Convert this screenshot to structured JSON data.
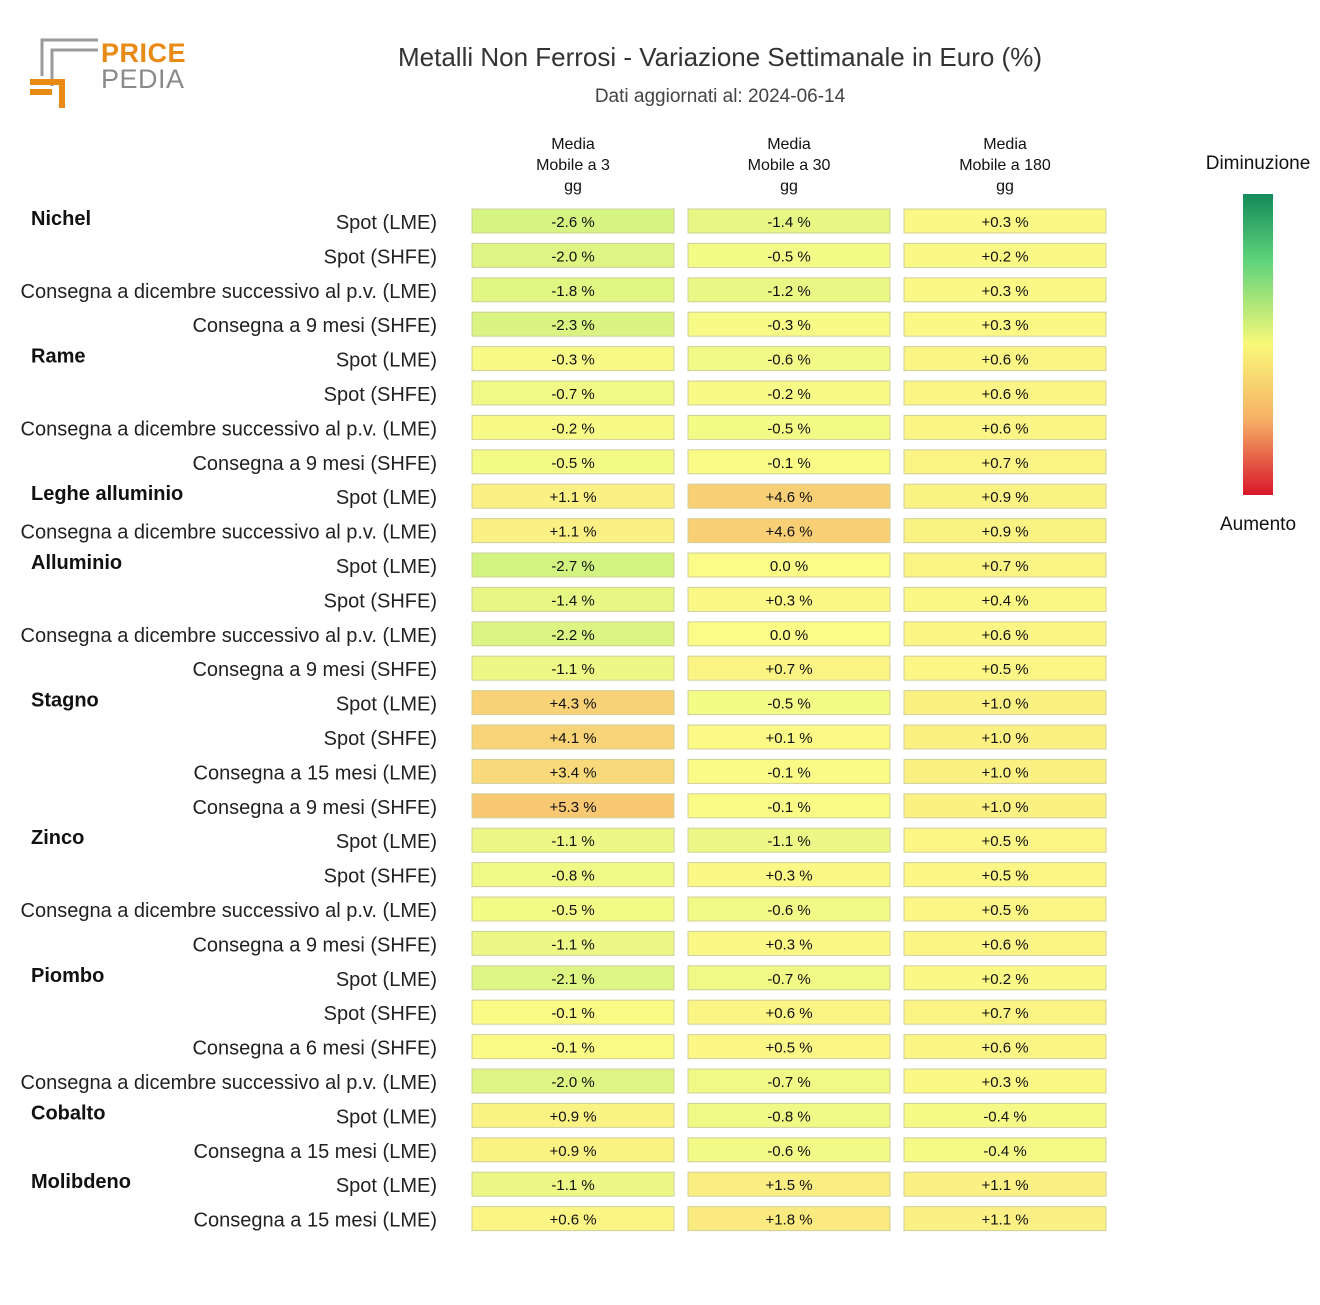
{
  "logo": {
    "line1": "PRICE",
    "line2": "PEDIA"
  },
  "header": {
    "title": "Metalli Non Ferrosi - Variazione Settimanale in Euro (%)",
    "subtitle": "Dati aggiornati al: 2024-06-14"
  },
  "legend": {
    "top_label": "Diminuzione",
    "bottom_label": "Aumento"
  },
  "colors": {
    "green": "#138a5a",
    "light_green": "#5ed37a",
    "yellow": "#f8f878",
    "orange": "#f6b066",
    "red": "#d8162a"
  },
  "chart_data": {
    "type": "heatmap",
    "title": "Metalli Non Ferrosi - Variazione Settimanale in Euro (%)",
    "columns": [
      [
        "Media",
        "Mobile a 3",
        "gg"
      ],
      [
        "Media",
        "Mobile a 30",
        "gg"
      ],
      [
        "Media",
        "Mobile a 180",
        "gg"
      ]
    ],
    "unit": "%",
    "groups": [
      {
        "name": "Nichel",
        "rows": [
          {
            "label": "Spot (LME)",
            "values": [
              -2.6,
              -1.4,
              0.3
            ]
          },
          {
            "label": "Spot (SHFE)",
            "values": [
              -2.0,
              -0.5,
              0.2
            ]
          },
          {
            "label": "Consegna a dicembre successivo al p.v. (LME)",
            "values": [
              -1.8,
              -1.2,
              0.3
            ]
          },
          {
            "label": "Consegna a 9 mesi (SHFE)",
            "values": [
              -2.3,
              -0.3,
              0.3
            ]
          }
        ]
      },
      {
        "name": "Rame",
        "rows": [
          {
            "label": "Spot (LME)",
            "values": [
              -0.3,
              -0.6,
              0.6
            ]
          },
          {
            "label": "Spot (SHFE)",
            "values": [
              -0.7,
              -0.2,
              0.6
            ]
          },
          {
            "label": "Consegna a dicembre successivo al p.v. (LME)",
            "values": [
              -0.2,
              -0.5,
              0.6
            ]
          },
          {
            "label": "Consegna a 9 mesi (SHFE)",
            "values": [
              -0.5,
              -0.1,
              0.7
            ]
          }
        ]
      },
      {
        "name": "Leghe alluminio",
        "rows": [
          {
            "label": "Spot (LME)",
            "values": [
              1.1,
              4.6,
              0.9
            ]
          },
          {
            "label": "Consegna a dicembre successivo al p.v. (LME)",
            "values": [
              1.1,
              4.6,
              0.9
            ]
          }
        ]
      },
      {
        "name": "Alluminio",
        "rows": [
          {
            "label": "Spot (LME)",
            "values": [
              -2.7,
              0.0,
              0.7
            ]
          },
          {
            "label": "Spot (SHFE)",
            "values": [
              -1.4,
              0.3,
              0.4
            ]
          },
          {
            "label": "Consegna a dicembre successivo al p.v. (LME)",
            "values": [
              -2.2,
              0.0,
              0.6
            ]
          },
          {
            "label": "Consegna a 9 mesi (SHFE)",
            "values": [
              -1.1,
              0.7,
              0.5
            ]
          }
        ]
      },
      {
        "name": "Stagno",
        "rows": [
          {
            "label": "Spot (LME)",
            "values": [
              4.3,
              -0.5,
              1.0
            ]
          },
          {
            "label": "Spot (SHFE)",
            "values": [
              4.1,
              0.1,
              1.0
            ]
          },
          {
            "label": "Consegna a 15 mesi (LME)",
            "values": [
              3.4,
              -0.1,
              1.0
            ]
          },
          {
            "label": "Consegna a 9 mesi (SHFE)",
            "values": [
              5.3,
              -0.1,
              1.0
            ]
          }
        ]
      },
      {
        "name": "Zinco",
        "rows": [
          {
            "label": "Spot (LME)",
            "values": [
              -1.1,
              -1.1,
              0.5
            ]
          },
          {
            "label": "Spot (SHFE)",
            "values": [
              -0.8,
              0.3,
              0.5
            ]
          },
          {
            "label": "Consegna a dicembre successivo al p.v. (LME)",
            "values": [
              -0.5,
              -0.6,
              0.5
            ]
          },
          {
            "label": "Consegna a 9 mesi (SHFE)",
            "values": [
              -1.1,
              0.3,
              0.6
            ]
          }
        ]
      },
      {
        "name": "Piombo",
        "rows": [
          {
            "label": "Spot (LME)",
            "values": [
              -2.1,
              -0.7,
              0.2
            ]
          },
          {
            "label": "Spot (SHFE)",
            "values": [
              -0.1,
              0.6,
              0.7
            ]
          },
          {
            "label": "Consegna a 6 mesi (SHFE)",
            "values": [
              -0.1,
              0.5,
              0.6
            ]
          },
          {
            "label": "Consegna a dicembre successivo al p.v. (LME)",
            "values": [
              -2.0,
              -0.7,
              0.3
            ]
          }
        ]
      },
      {
        "name": "Cobalto",
        "rows": [
          {
            "label": "Spot (LME)",
            "values": [
              0.9,
              -0.8,
              -0.4
            ]
          },
          {
            "label": "Consegna a 15 mesi (LME)",
            "values": [
              0.9,
              -0.6,
              -0.4
            ]
          }
        ]
      },
      {
        "name": "Molibdeno",
        "rows": [
          {
            "label": "Spot (LME)",
            "values": [
              -1.1,
              1.5,
              1.1
            ]
          },
          {
            "label": "Consegna a 15 mesi (LME)",
            "values": [
              0.6,
              1.8,
              1.1
            ]
          }
        ]
      }
    ]
  }
}
